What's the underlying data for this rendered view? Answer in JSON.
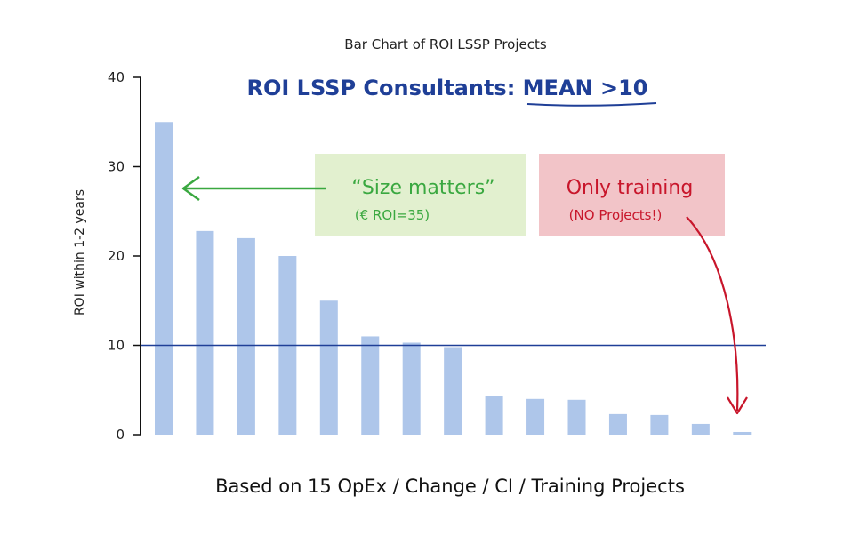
{
  "chart_data": {
    "type": "bar",
    "title": "Bar Chart of ROI LSSP Projects",
    "headline": "ROI LSSP Consultants: ",
    "headline_emphasis": "MEAN >10",
    "ylabel": "ROI within 1-2 years",
    "xlabel": "Based on 15 OpEx / Change / CI / Training Projects",
    "ylim": [
      0,
      40
    ],
    "yticks": [
      0,
      10,
      20,
      30,
      40
    ],
    "values": [
      35,
      22.8,
      22,
      20,
      15,
      11,
      10.3,
      9.8,
      4.3,
      4,
      3.9,
      2.3,
      2.2,
      1.2,
      0.3
    ],
    "reference_line": {
      "value": 10,
      "color": "#1f3f97"
    },
    "bar_color": "#aec6ea",
    "annotations": {
      "green": {
        "title": "“Size matters”",
        "sub": "(€ ROI=35)",
        "text_color": "#3aa840",
        "bg_color": "#e2f0cf"
      },
      "red": {
        "title": "Only training",
        "sub": "(NO Projects!)",
        "text_color": "#c8162b",
        "bg_color": "#f2c4c8"
      }
    },
    "grid": false,
    "legend": "none"
  }
}
